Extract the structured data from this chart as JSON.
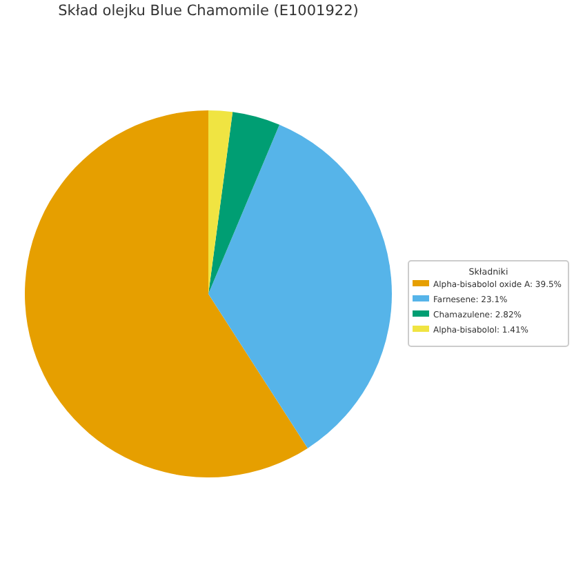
{
  "chart_data": {
    "type": "pie",
    "title": "Skład olejku Blue Chamomile (E1001922)",
    "legend_title": "Składniki",
    "categories": [
      "Alpha-bisabolol oxide A: 39.5%",
      "Farnesene: 23.1%",
      "Chamazulene: 2.82%",
      "Alpha-bisabolol: 1.41%"
    ],
    "values": [
      39.5,
      23.1,
      2.82,
      1.41
    ],
    "colors": [
      "#e69f00",
      "#56b4e9",
      "#009e73",
      "#f0e442"
    ],
    "legend": "right"
  }
}
